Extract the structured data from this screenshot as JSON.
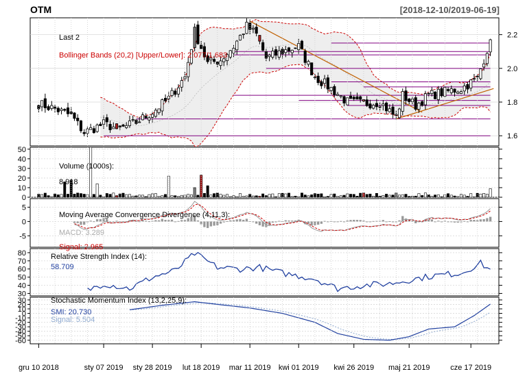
{
  "header": {
    "symbol": "OTM",
    "date_range": "[2018-12-10/2019-06-19]"
  },
  "x_axis": {
    "tick_labels": [
      "gru 10 2018",
      "sty 07 2019",
      "sty 28 2019",
      "lut 18 2019",
      "mar 11 2019",
      "kwi 01 2019",
      "kwi 26 2019",
      "maj 21 2019",
      "cze 17 2019"
    ],
    "tick_label_bars": [
      0,
      20,
      35,
      50,
      65,
      80,
      97,
      114,
      133
    ]
  },
  "colors": {
    "up_candle": "#ffffff",
    "down_candle": "#000000",
    "highlight_candle": "#b22222",
    "gray_candle": "#808080",
    "bbands_line": "#cc0000",
    "bbands_fill": "#eeeeee",
    "trendline": "#c06000",
    "support_line": "#800080",
    "macd_signal": "#cc0000",
    "rsi": "#1f3f9f",
    "smi": "#1f3f9f",
    "smi_signal": "#8faad0"
  },
  "panels": {
    "price": {
      "label_last": "Last 2",
      "label_bb": "Bollinger Bands (20,2) [Upper/Lower]: 2.077/1.683",
      "y_ticks": [
        "1.6",
        "1.8",
        "2.0",
        "2.2"
      ]
    },
    "volume": {
      "label": "Volume (1000s):",
      "value": "8,918",
      "y_ticks": [
        "0",
        "10",
        "20",
        "30",
        "40",
        "50"
      ]
    },
    "macd": {
      "label": "Moving Average Convergence Divergence (4,11,3):",
      "macd_label": "MACD: 3.289",
      "signal_label": "Signal: 2.965",
      "y_ticks": [
        "-5",
        "0",
        "5"
      ]
    },
    "rsi": {
      "label": "Relative Strength Index (14):",
      "value": "58.709",
      "y_ticks": [
        "30",
        "40",
        "50",
        "60",
        "70",
        "80"
      ]
    },
    "smi": {
      "label": "Stochastic Momentum Index (13,2,25,9):",
      "smi_label": "SMI: 20.730",
      "signal_label": "Signal: 5.504",
      "y_ticks": [
        "-60",
        "-50",
        "-40",
        "-30",
        "-20",
        "-10",
        "0",
        "10",
        "20",
        "30"
      ]
    }
  },
  "chart_data": {
    "type": "candlestick",
    "title": "OTM",
    "date_range": "2018-12-10 / 2019-06-19",
    "bars": 140,
    "price_range": [
      1.54,
      2.3
    ],
    "volume_range": [
      0,
      52
    ],
    "macd_range": [
      -9,
      8
    ],
    "rsi_range": [
      27,
      85
    ],
    "smi_range": [
      -68,
      36
    ],
    "ohlc_anchors": [
      {
        "bar": 0,
        "close": 1.79
      },
      {
        "bar": 5,
        "close": 1.76
      },
      {
        "bar": 10,
        "close": 1.72
      },
      {
        "bar": 14,
        "close": 1.62
      },
      {
        "bar": 20,
        "close": 1.67
      },
      {
        "bar": 25,
        "close": 1.64
      },
      {
        "bar": 30,
        "close": 1.68
      },
      {
        "bar": 35,
        "close": 1.74
      },
      {
        "bar": 40,
        "close": 1.82
      },
      {
        "bar": 45,
        "close": 1.95
      },
      {
        "bar": 48,
        "close": 2.22
      },
      {
        "bar": 52,
        "close": 2.03
      },
      {
        "bar": 56,
        "close": 2.05
      },
      {
        "bar": 60,
        "close": 2.13
      },
      {
        "bar": 64,
        "close": 2.25
      },
      {
        "bar": 67,
        "close": 2.2
      },
      {
        "bar": 70,
        "close": 2.06
      },
      {
        "bar": 75,
        "close": 2.1
      },
      {
        "bar": 80,
        "close": 2.13
      },
      {
        "bar": 85,
        "close": 1.95
      },
      {
        "bar": 90,
        "close": 1.88
      },
      {
        "bar": 95,
        "close": 1.8
      },
      {
        "bar": 100,
        "close": 1.79
      },
      {
        "bar": 105,
        "close": 1.8
      },
      {
        "bar": 110,
        "close": 1.71
      },
      {
        "bar": 112,
        "close": 1.84
      },
      {
        "bar": 116,
        "close": 1.78
      },
      {
        "bar": 120,
        "close": 1.84
      },
      {
        "bar": 125,
        "close": 1.86
      },
      {
        "bar": 130,
        "close": 1.88
      },
      {
        "bar": 135,
        "close": 1.94
      },
      {
        "bar": 139,
        "close": 2.17
      }
    ],
    "horizontal_levels": [
      2.15,
      2.1,
      2.08,
      2.0,
      1.92,
      1.89,
      1.84,
      1.81,
      1.78,
      1.7,
      1.6
    ],
    "trendlines": [
      {
        "from_bar": 65,
        "from_price": 2.28,
        "to_bar": 118,
        "to_price": 1.74
      },
      {
        "from_bar": 110,
        "from_price": 1.7,
        "to_bar": 140,
        "to_price": 1.88
      }
    ],
    "rsi_anchors": [
      {
        "bar": 15,
        "value": 34
      },
      {
        "bar": 20,
        "value": 42
      },
      {
        "bar": 28,
        "value": 36
      },
      {
        "bar": 35,
        "value": 50
      },
      {
        "bar": 42,
        "value": 58
      },
      {
        "bar": 48,
        "value": 79
      },
      {
        "bar": 55,
        "value": 62
      },
      {
        "bar": 62,
        "value": 60
      },
      {
        "bar": 68,
        "value": 62
      },
      {
        "bar": 75,
        "value": 55
      },
      {
        "bar": 85,
        "value": 48
      },
      {
        "bar": 92,
        "value": 36
      },
      {
        "bar": 100,
        "value": 40
      },
      {
        "bar": 108,
        "value": 42
      },
      {
        "bar": 116,
        "value": 48
      },
      {
        "bar": 122,
        "value": 52
      },
      {
        "bar": 130,
        "value": 55
      },
      {
        "bar": 136,
        "value": 67
      },
      {
        "bar": 139,
        "value": 58.709
      }
    ],
    "smi_anchors": [
      {
        "bar": 28,
        "value": 8
      },
      {
        "bar": 38,
        "value": 18
      },
      {
        "bar": 48,
        "value": 26
      },
      {
        "bar": 55,
        "value": 20
      },
      {
        "bar": 65,
        "value": 12
      },
      {
        "bar": 75,
        "value": 0
      },
      {
        "bar": 85,
        "value": -20
      },
      {
        "bar": 92,
        "value": -45
      },
      {
        "bar": 100,
        "value": -58
      },
      {
        "bar": 108,
        "value": -60
      },
      {
        "bar": 114,
        "value": -52
      },
      {
        "bar": 120,
        "value": -35
      },
      {
        "bar": 128,
        "value": -30
      },
      {
        "bar": 134,
        "value": -5
      },
      {
        "bar": 139,
        "value": 20.73
      }
    ],
    "volume_spikes": [
      {
        "bar": 8,
        "value": 16
      },
      {
        "bar": 10,
        "value": 18
      },
      {
        "bar": 16,
        "value": 52
      },
      {
        "bar": 18,
        "value": 14
      },
      {
        "bar": 40,
        "value": 22
      },
      {
        "bar": 48,
        "value": 10
      },
      {
        "bar": 50,
        "value": 23
      },
      {
        "bar": 52,
        "value": 12
      },
      {
        "bar": 139,
        "value": 8.918
      }
    ]
  }
}
